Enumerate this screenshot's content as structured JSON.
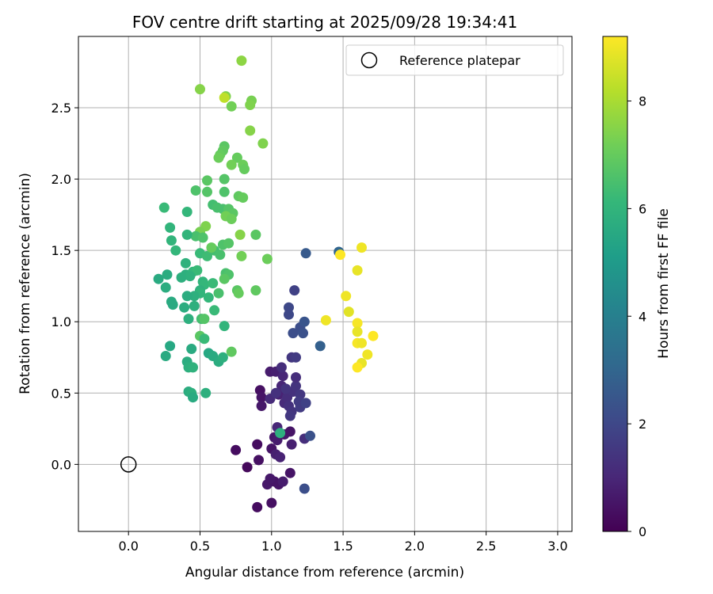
{
  "chart_data": {
    "type": "scatter",
    "title": "FOV centre drift starting at 2025/09/28 19:34:41",
    "xlabel": "Angular distance from reference (arcmin)",
    "ylabel": "Rotation from reference (arcmin)",
    "xlim": [
      -0.35,
      3.1
    ],
    "ylim": [
      -0.47,
      3.0
    ],
    "x_ticks": [
      0.0,
      0.5,
      1.0,
      1.5,
      2.0,
      2.5,
      3.0
    ],
    "x_tick_labels": [
      "0.0",
      "0.5",
      "1.0",
      "1.5",
      "2.0",
      "2.5",
      "3.0"
    ],
    "y_ticks": [
      0.0,
      0.5,
      1.0,
      1.5,
      2.0,
      2.5
    ],
    "y_tick_labels": [
      "0.0",
      "0.5",
      "1.0",
      "1.5",
      "2.0",
      "2.5"
    ],
    "grid": true,
    "legend": {
      "position": "top-right",
      "entries": [
        {
          "label": "Reference platepar",
          "marker": "open-circle"
        }
      ]
    },
    "reference_point": {
      "x": 0.0,
      "y": 0.0
    },
    "colorbar": {
      "label": "Hours from first FF file",
      "colormap": "viridis",
      "min": 0,
      "max": 9.2,
      "ticks": [
        0,
        2,
        4,
        6,
        8
      ],
      "tick_labels": [
        "0",
        "2",
        "4",
        "6",
        "8"
      ]
    },
    "colormap_stops": [
      "#440154",
      "#482878",
      "#3e4989",
      "#31688e",
      "#26828e",
      "#1f9e89",
      "#35b779",
      "#6ece58",
      "#b5de2b",
      "#fde725"
    ],
    "points": [
      [
        0.9,
        -0.3,
        0.3
      ],
      [
        1.0,
        -0.27,
        0.4
      ],
      [
        1.05,
        -0.14,
        0.5
      ],
      [
        0.97,
        -0.14,
        0.6
      ],
      [
        1.02,
        -0.12,
        0.5
      ],
      [
        1.08,
        -0.12,
        0.7
      ],
      [
        0.99,
        -0.1,
        0.6
      ],
      [
        1.13,
        -0.06,
        0.5
      ],
      [
        0.83,
        -0.02,
        0.2
      ],
      [
        0.75,
        0.1,
        0.3
      ],
      [
        0.91,
        0.03,
        0.4
      ],
      [
        0.9,
        0.14,
        0.3
      ],
      [
        1.0,
        0.11,
        0.5
      ],
      [
        1.02,
        0.19,
        0.6
      ],
      [
        1.03,
        0.07,
        0.8
      ],
      [
        1.06,
        0.05,
        0.9
      ],
      [
        1.04,
        0.17,
        0.7
      ],
      [
        1.09,
        0.21,
        0.6
      ],
      [
        1.13,
        0.23,
        0.5
      ],
      [
        1.14,
        0.14,
        0.8
      ],
      [
        1.04,
        0.26,
        1.0
      ],
      [
        1.23,
        0.18,
        1.2
      ],
      [
        1.27,
        0.2,
        2.3
      ],
      [
        1.23,
        -0.17,
        2.2
      ],
      [
        1.06,
        0.22,
        5.8
      ],
      [
        0.92,
        0.52,
        0.4
      ],
      [
        0.93,
        0.47,
        0.5
      ],
      [
        0.93,
        0.41,
        0.6
      ],
      [
        0.99,
        0.65,
        0.7
      ],
      [
        1.03,
        0.65,
        0.8
      ],
      [
        1.05,
        0.49,
        0.9
      ],
      [
        1.07,
        0.55,
        1.0
      ],
      [
        1.08,
        0.62,
        1.0
      ],
      [
        1.07,
        0.68,
        1.2
      ],
      [
        1.09,
        0.43,
        1.1
      ],
      [
        1.11,
        0.47,
        1.2
      ],
      [
        1.12,
        0.41,
        1.3
      ],
      [
        1.14,
        0.37,
        1.4
      ],
      [
        1.15,
        0.51,
        1.3
      ],
      [
        1.17,
        0.55,
        1.4
      ],
      [
        1.17,
        0.61,
        1.2
      ],
      [
        1.13,
        0.34,
        1.5
      ],
      [
        1.2,
        0.49,
        1.5
      ],
      [
        1.19,
        0.44,
        1.6
      ],
      [
        1.2,
        0.4,
        1.6
      ],
      [
        1.24,
        0.43,
        1.8
      ],
      [
        1.14,
        0.75,
        1.5
      ],
      [
        1.17,
        0.75,
        1.6
      ],
      [
        1.16,
        1.22,
        1.8
      ],
      [
        1.12,
        1.05,
        2.0
      ],
      [
        1.12,
        1.1,
        2.0
      ],
      [
        1.15,
        0.92,
        2.2
      ],
      [
        1.2,
        0.96,
        2.2
      ],
      [
        1.22,
        0.92,
        2.3
      ],
      [
        1.23,
        1.0,
        2.4
      ],
      [
        1.34,
        0.83,
        2.8
      ],
      [
        1.24,
        1.48,
        2.6
      ],
      [
        1.47,
        1.49,
        3.0
      ],
      [
        0.99,
        0.46,
        1.1
      ],
      [
        1.03,
        0.5,
        1.3
      ],
      [
        1.1,
        0.53,
        1.4
      ],
      [
        1.48,
        1.47,
        9.2
      ],
      [
        1.63,
        1.52,
        9.0
      ],
      [
        1.6,
        1.36,
        8.9
      ],
      [
        1.52,
        1.18,
        9.0
      ],
      [
        1.54,
        1.07,
        8.8
      ],
      [
        1.38,
        1.01,
        9.0
      ],
      [
        1.6,
        0.99,
        9.1
      ],
      [
        1.6,
        0.93,
        8.9
      ],
      [
        1.6,
        0.85,
        9.1
      ],
      [
        1.63,
        0.85,
        9.0
      ],
      [
        1.71,
        0.9,
        9.2
      ],
      [
        1.67,
        0.77,
        9.0
      ],
      [
        1.63,
        0.71,
        8.9
      ],
      [
        1.6,
        0.68,
        9.2
      ],
      [
        0.5,
        2.63,
        7.5
      ],
      [
        0.79,
        2.83,
        7.6
      ],
      [
        0.68,
        2.58,
        7.4
      ],
      [
        0.67,
        2.57,
        8.3
      ],
      [
        0.72,
        2.51,
        7.2
      ],
      [
        0.86,
        2.55,
        7.3
      ],
      [
        0.85,
        2.52,
        7.4
      ],
      [
        0.85,
        2.34,
        7.5
      ],
      [
        0.94,
        2.25,
        7.4
      ],
      [
        0.67,
        2.23,
        6.8
      ],
      [
        0.66,
        2.2,
        6.9
      ],
      [
        0.64,
        2.17,
        7.0
      ],
      [
        0.63,
        2.15,
        7.1
      ],
      [
        0.76,
        2.15,
        7.0
      ],
      [
        0.72,
        2.1,
        7.2
      ],
      [
        0.8,
        2.1,
        7.1
      ],
      [
        0.81,
        2.07,
        7.0
      ],
      [
        0.55,
        1.99,
        6.8
      ],
      [
        0.67,
        2.0,
        6.7
      ],
      [
        0.47,
        1.92,
        6.6
      ],
      [
        0.55,
        1.91,
        6.7
      ],
      [
        0.67,
        1.91,
        6.6
      ],
      [
        0.77,
        1.88,
        6.9
      ],
      [
        0.8,
        1.87,
        7.0
      ],
      [
        0.59,
        1.82,
        6.4
      ],
      [
        0.62,
        1.8,
        6.5
      ],
      [
        0.66,
        1.79,
        6.5
      ],
      [
        0.7,
        1.79,
        6.7
      ],
      [
        0.73,
        1.76,
        6.8
      ],
      [
        0.68,
        1.74,
        7.2
      ],
      [
        0.72,
        1.72,
        7.1
      ],
      [
        0.25,
        1.8,
        6.2
      ],
      [
        0.41,
        1.77,
        6.1
      ],
      [
        0.54,
        1.67,
        7.4
      ],
      [
        0.5,
        1.63,
        7.3
      ],
      [
        0.47,
        1.6,
        6.5
      ],
      [
        0.52,
        1.59,
        6.6
      ],
      [
        0.78,
        1.61,
        7.5
      ],
      [
        0.89,
        1.61,
        6.8
      ],
      [
        0.41,
        1.61,
        6.0
      ],
      [
        0.29,
        1.66,
        6.0
      ],
      [
        0.3,
        1.57,
        6.0
      ],
      [
        0.33,
        1.5,
        6.1
      ],
      [
        0.5,
        1.48,
        6.2
      ],
      [
        0.55,
        1.46,
        6.3
      ],
      [
        0.6,
        1.5,
        6.4
      ],
      [
        0.64,
        1.47,
        6.5
      ],
      [
        0.66,
        1.54,
        6.6
      ],
      [
        0.7,
        1.55,
        6.7
      ],
      [
        0.58,
        1.52,
        7.0
      ],
      [
        0.79,
        1.46,
        7.2
      ],
      [
        0.97,
        1.44,
        7.1
      ],
      [
        0.4,
        1.41,
        5.9
      ],
      [
        0.4,
        1.33,
        5.8
      ],
      [
        0.45,
        1.35,
        6.1
      ],
      [
        0.48,
        1.36,
        6.2
      ],
      [
        0.43,
        1.32,
        5.9
      ],
      [
        0.37,
        1.31,
        5.8
      ],
      [
        0.27,
        1.33,
        5.7
      ],
      [
        0.21,
        1.3,
        5.6
      ],
      [
        0.26,
        1.24,
        5.7
      ],
      [
        0.52,
        1.28,
        6.0
      ],
      [
        0.53,
        1.26,
        6.1
      ],
      [
        0.59,
        1.27,
        6.2
      ],
      [
        0.68,
        1.34,
        6.5
      ],
      [
        0.7,
        1.33,
        6.6
      ],
      [
        0.67,
        1.3,
        6.8
      ],
      [
        0.5,
        1.22,
        5.9
      ],
      [
        0.5,
        1.2,
        6.0
      ],
      [
        0.56,
        1.17,
        6.1
      ],
      [
        0.63,
        1.2,
        6.5
      ],
      [
        0.76,
        1.22,
        6.8
      ],
      [
        0.77,
        1.2,
        7.0
      ],
      [
        0.89,
        1.22,
        6.9
      ],
      [
        0.46,
        1.18,
        5.8
      ],
      [
        0.41,
        1.18,
        5.7
      ],
      [
        0.3,
        1.14,
        5.6
      ],
      [
        0.31,
        1.12,
        5.6
      ],
      [
        0.39,
        1.1,
        5.7
      ],
      [
        0.46,
        1.11,
        5.8
      ],
      [
        0.6,
        1.08,
        6.2
      ],
      [
        0.51,
        1.02,
        6.4
      ],
      [
        0.53,
        1.02,
        6.7
      ],
      [
        0.42,
        1.02,
        5.8
      ],
      [
        0.5,
        0.9,
        6.8
      ],
      [
        0.53,
        0.88,
        6.2
      ],
      [
        0.67,
        0.97,
        6.0
      ],
      [
        0.72,
        0.79,
        6.9
      ],
      [
        0.29,
        0.83,
        5.5
      ],
      [
        0.26,
        0.76,
        5.6
      ],
      [
        0.44,
        0.81,
        5.6
      ],
      [
        0.41,
        0.72,
        5.7
      ],
      [
        0.42,
        0.68,
        5.8
      ],
      [
        0.45,
        0.68,
        5.9
      ],
      [
        0.56,
        0.78,
        5.5
      ],
      [
        0.59,
        0.76,
        5.6
      ],
      [
        0.63,
        0.72,
        5.7
      ],
      [
        0.66,
        0.75,
        5.8
      ],
      [
        0.42,
        0.51,
        5.7
      ],
      [
        0.44,
        0.5,
        5.8
      ],
      [
        0.45,
        0.47,
        5.6
      ],
      [
        0.54,
        0.5,
        5.8
      ]
    ]
  }
}
